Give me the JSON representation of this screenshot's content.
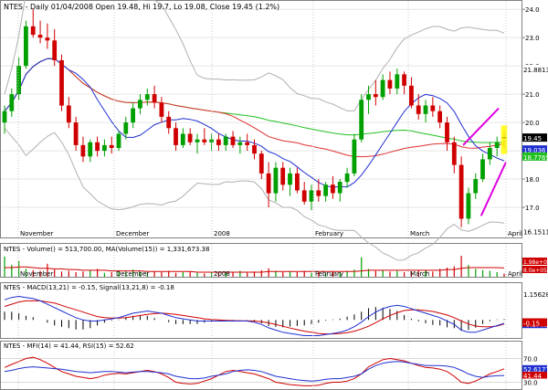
{
  "header": {
    "symbol": "NTES",
    "period": "Daily",
    "date": "01/04/2008",
    "open_label": "Open 19.48,",
    "high_label": "Hi 19.7,",
    "low_label": "Lo 19.08,",
    "close_label": "Close 19.45 (1.2%)"
  },
  "colors": {
    "up_candle": "#00a000",
    "down_candle": "#d00000",
    "doji": "#000000",
    "bb_band": "#b0b0b0",
    "ma_red": "#e03030",
    "ma_blue": "#2030d0",
    "ma_green": "#20c020",
    "volume_up": "#00a000",
    "volume_down": "#d00000",
    "volume_ma": "#d00000",
    "macd": "#2030d0",
    "signal": "#d00000",
    "histogram": "#000000",
    "mfi": "#2030d0",
    "rsi": "#d00000",
    "annotation": "#e000e0",
    "highlight": "#ffff00"
  },
  "x_axis": {
    "labels": [
      "November",
      "December",
      "2008",
      "February",
      "March",
      "April"
    ]
  },
  "chart_data": [
    {
      "type": "candlestick",
      "panel": "price",
      "ylim": [
        16.0,
        24.2
      ],
      "y_ticks": [
        "24.0",
        "23.0",
        "22.0",
        "21.0",
        "20.0",
        "19.0",
        "18.0",
        "17.0"
      ],
      "right_labels": [
        "21.8813",
        "19.45",
        "19.036",
        "18.7765",
        "16.1511"
      ],
      "series_hint": [
        "Bollinger bands",
        "MA red",
        "MA blue",
        "MA green"
      ],
      "candles": [
        [
          20.0,
          20.6,
          19.6,
          20.4
        ],
        [
          20.4,
          21.2,
          20.2,
          21.0
        ],
        [
          21.0,
          22.3,
          20.8,
          22.0
        ],
        [
          22.0,
          23.6,
          21.9,
          23.4
        ],
        [
          23.4,
          24.0,
          23.0,
          23.1
        ],
        [
          23.1,
          23.6,
          22.8,
          23.0
        ],
        [
          23.0,
          23.5,
          22.6,
          22.9
        ],
        [
          22.9,
          23.3,
          22.0,
          22.2
        ],
        [
          22.2,
          22.4,
          20.4,
          20.6
        ],
        [
          20.6,
          20.9,
          19.8,
          20.0
        ],
        [
          20.0,
          20.2,
          19.0,
          19.2
        ],
        [
          19.2,
          19.5,
          18.6,
          18.8
        ],
        [
          18.8,
          19.4,
          18.6,
          19.3
        ],
        [
          19.3,
          19.5,
          18.8,
          19.0
        ],
        [
          19.0,
          19.4,
          18.8,
          19.2
        ],
        [
          19.2,
          19.5,
          18.9,
          19.1
        ],
        [
          19.1,
          19.7,
          19.0,
          19.6
        ],
        [
          19.6,
          20.2,
          19.4,
          20.0
        ],
        [
          20.0,
          20.7,
          19.8,
          20.5
        ],
        [
          20.5,
          21.0,
          20.3,
          20.8
        ],
        [
          20.8,
          21.2,
          20.6,
          21.0
        ],
        [
          21.0,
          21.3,
          20.5,
          20.7
        ],
        [
          20.7,
          20.9,
          20.0,
          20.2
        ],
        [
          20.2,
          20.4,
          19.6,
          19.8
        ],
        [
          19.8,
          20.0,
          19.0,
          19.2
        ],
        [
          19.2,
          19.8,
          19.1,
          19.6
        ],
        [
          19.6,
          19.8,
          19.2,
          19.3
        ],
        [
          19.3,
          19.6,
          18.9,
          19.4
        ],
        [
          19.4,
          19.8,
          19.2,
          19.3
        ],
        [
          19.3,
          19.6,
          19.0,
          19.4
        ],
        [
          19.4,
          19.6,
          19.0,
          19.2
        ],
        [
          19.2,
          19.6,
          19.0,
          19.5
        ],
        [
          19.5,
          19.7,
          19.1,
          19.2
        ],
        [
          19.2,
          19.5,
          18.9,
          19.3
        ],
        [
          19.3,
          19.6,
          19.0,
          19.2
        ],
        [
          19.2,
          19.4,
          18.7,
          18.9
        ],
        [
          18.9,
          19.0,
          18.0,
          18.2
        ],
        [
          18.2,
          18.6,
          17.0,
          17.5
        ],
        [
          17.5,
          18.6,
          17.2,
          18.4
        ],
        [
          18.4,
          18.6,
          17.6,
          17.8
        ],
        [
          17.8,
          18.4,
          17.4,
          18.2
        ],
        [
          18.2,
          18.4,
          17.5,
          17.6
        ],
        [
          17.6,
          17.9,
          17.1,
          17.2
        ],
        [
          17.2,
          17.8,
          16.9,
          17.6
        ],
        [
          17.6,
          18.0,
          17.2,
          17.4
        ],
        [
          17.4,
          17.9,
          17.2,
          17.8
        ],
        [
          17.8,
          18.1,
          17.3,
          17.5
        ],
        [
          17.5,
          18.0,
          17.2,
          17.9
        ],
        [
          17.9,
          18.4,
          17.7,
          18.2
        ],
        [
          18.2,
          19.6,
          18.1,
          19.4
        ],
        [
          19.4,
          21.0,
          19.3,
          20.8
        ],
        [
          20.8,
          21.3,
          20.3,
          21.0
        ],
        [
          21.0,
          21.5,
          20.6,
          20.9
        ],
        [
          20.9,
          21.7,
          20.8,
          21.5
        ],
        [
          21.5,
          21.8,
          21.0,
          21.2
        ],
        [
          21.2,
          21.9,
          21.0,
          21.7
        ],
        [
          21.7,
          21.8,
          21.0,
          21.3
        ],
        [
          21.3,
          21.6,
          20.5,
          20.6
        ],
        [
          20.6,
          21.0,
          20.1,
          20.3
        ],
        [
          20.3,
          20.8,
          20.0,
          20.6
        ],
        [
          20.6,
          20.9,
          20.2,
          20.4
        ],
        [
          20.4,
          20.6,
          19.8,
          20.0
        ],
        [
          20.0,
          20.2,
          19.0,
          19.3
        ],
        [
          19.3,
          19.5,
          18.2,
          18.5
        ],
        [
          18.5,
          18.8,
          16.3,
          16.6
        ],
        [
          16.6,
          17.7,
          16.4,
          17.5
        ],
        [
          17.5,
          18.2,
          17.3,
          18.0
        ],
        [
          18.0,
          18.9,
          17.9,
          18.7
        ],
        [
          18.7,
          19.3,
          18.5,
          19.1
        ],
        [
          19.1,
          19.5,
          18.8,
          19.3
        ],
        [
          19.48,
          19.7,
          19.08,
          19.45
        ]
      ]
    },
    {
      "type": "bar",
      "panel": "volume",
      "title": "NTES - Volume() = 513,700.00, MA(Volume(15)) = 1,331,673.38",
      "right_labels": [
        "1.98e+06",
        "8.0e+05"
      ],
      "values": [
        3.1,
        1.8,
        2.4,
        1.2,
        1.0,
        0.9,
        2.0,
        1.1,
        0.8,
        0.9,
        0.7,
        0.8,
        1.0,
        1.2,
        0.6,
        0.7,
        0.8,
        0.9,
        1.1,
        0.7,
        0.6,
        0.8,
        0.7,
        0.9,
        0.6,
        0.7,
        0.8,
        0.6,
        0.5,
        0.7,
        0.6,
        0.8,
        0.7,
        0.9,
        0.6,
        0.8,
        1.0,
        1.3,
        0.9,
        0.7,
        0.8,
        0.7,
        0.9,
        0.6,
        0.7,
        0.6,
        0.8,
        0.7,
        0.9,
        1.1,
        3.0,
        1.2,
        0.9,
        1.0,
        0.8,
        0.9,
        0.7,
        0.8,
        1.0,
        0.9,
        0.8,
        1.2,
        1.4,
        1.6,
        3.2,
        1.8,
        1.2,
        1.0,
        0.9,
        0.7,
        0.5
      ],
      "ma_values": [
        1.4,
        1.4,
        1.5,
        1.5,
        1.4,
        1.3,
        1.3,
        1.2,
        1.2,
        1.1,
        1.1,
        1.0,
        1.0,
        1.0,
        1.0,
        0.9,
        0.9,
        0.9,
        0.9,
        0.9,
        0.8,
        0.8,
        0.8,
        0.8,
        0.8,
        0.8,
        0.8,
        0.7,
        0.7,
        0.7,
        0.7,
        0.7,
        0.7,
        0.7,
        0.7,
        0.7,
        0.7,
        0.8,
        0.8,
        0.8,
        0.8,
        0.8,
        0.8,
        0.8,
        0.8,
        0.8,
        0.8,
        0.8,
        0.8,
        0.8,
        0.9,
        1.0,
        1.0,
        1.0,
        1.0,
        1.0,
        1.0,
        1.0,
        1.0,
        1.0,
        1.0,
        1.0,
        1.1,
        1.1,
        1.3,
        1.4,
        1.4,
        1.4,
        1.4,
        1.4,
        1.35
      ]
    },
    {
      "type": "line",
      "panel": "macd",
      "title": "NTES - MACD(13,21) = -0.15, Signal(13,21,8) = -0.18",
      "right_labels": [
        "1.15628",
        "-0.17615",
        "-0.15"
      ],
      "macd": [
        0.9,
        1.0,
        1.05,
        1.0,
        0.95,
        0.85,
        0.7,
        0.55,
        0.4,
        0.25,
        0.1,
        0.0,
        -0.05,
        -0.05,
        0.0,
        0.05,
        0.1,
        0.2,
        0.3,
        0.35,
        0.4,
        0.35,
        0.3,
        0.2,
        0.1,
        0.05,
        0.0,
        -0.05,
        -0.05,
        -0.05,
        -0.05,
        -0.05,
        -0.05,
        -0.05,
        -0.05,
        -0.1,
        -0.2,
        -0.35,
        -0.45,
        -0.55,
        -0.6,
        -0.65,
        -0.7,
        -0.7,
        -0.7,
        -0.65,
        -0.6,
        -0.55,
        -0.45,
        -0.3,
        -0.1,
        0.15,
        0.35,
        0.5,
        0.6,
        0.65,
        0.6,
        0.5,
        0.4,
        0.3,
        0.2,
        0.1,
        -0.05,
        -0.2,
        -0.45,
        -0.55,
        -0.55,
        -0.45,
        -0.35,
        -0.25,
        -0.15
      ],
      "signal": [
        0.6,
        0.7,
        0.8,
        0.85,
        0.85,
        0.85,
        0.8,
        0.75,
        0.65,
        0.55,
        0.45,
        0.35,
        0.25,
        0.15,
        0.1,
        0.08,
        0.08,
        0.1,
        0.15,
        0.2,
        0.25,
        0.28,
        0.3,
        0.28,
        0.25,
        0.2,
        0.15,
        0.1,
        0.05,
        0.02,
        0.0,
        -0.02,
        -0.03,
        -0.04,
        -0.04,
        -0.05,
        -0.08,
        -0.13,
        -0.2,
        -0.28,
        -0.36,
        -0.43,
        -0.5,
        -0.55,
        -0.6,
        -0.62,
        -0.62,
        -0.6,
        -0.57,
        -0.5,
        -0.4,
        -0.28,
        -0.12,
        0.05,
        0.2,
        0.32,
        0.42,
        0.45,
        0.45,
        0.42,
        0.38,
        0.3,
        0.22,
        0.1,
        -0.05,
        -0.18,
        -0.27,
        -0.3,
        -0.3,
        -0.27,
        -0.18
      ]
    },
    {
      "type": "line",
      "panel": "oscillator",
      "title": "NTES - MFI(14) = 41.44, RSI(15) = 52.62",
      "right_labels": [
        "70.0",
        "52.6177",
        "41.44",
        "30.0"
      ],
      "ylim": [
        20,
        80
      ],
      "mfi": [
        48,
        50,
        53,
        55,
        56,
        55,
        54,
        53,
        52,
        50,
        48,
        47,
        46,
        47,
        48,
        48,
        47,
        46,
        47,
        48,
        48,
        47,
        46,
        44,
        40,
        38,
        36,
        36,
        37,
        40,
        42,
        44,
        48,
        50,
        51,
        50,
        48,
        44,
        40,
        38,
        36,
        34,
        33,
        32,
        33,
        35,
        36,
        36,
        38,
        40,
        44,
        52,
        58,
        62,
        64,
        65,
        64,
        62,
        60,
        58,
        58,
        58,
        57,
        55,
        50,
        44,
        40,
        38,
        40,
        41,
        41.44
      ],
      "rsi": [
        55,
        60,
        65,
        70,
        72,
        68,
        62,
        55,
        48,
        44,
        40,
        38,
        36,
        38,
        42,
        44,
        45,
        44,
        46,
        48,
        50,
        48,
        44,
        38,
        30,
        28,
        27,
        28,
        32,
        36,
        42,
        48,
        50,
        48,
        46,
        44,
        40,
        36,
        30,
        28,
        26,
        25,
        24,
        24,
        25,
        28,
        30,
        30,
        32,
        36,
        44,
        56,
        62,
        68,
        70,
        68,
        66,
        62,
        58,
        55,
        54,
        52,
        48,
        40,
        30,
        28,
        32,
        38,
        44,
        48,
        52.62
      ]
    }
  ]
}
